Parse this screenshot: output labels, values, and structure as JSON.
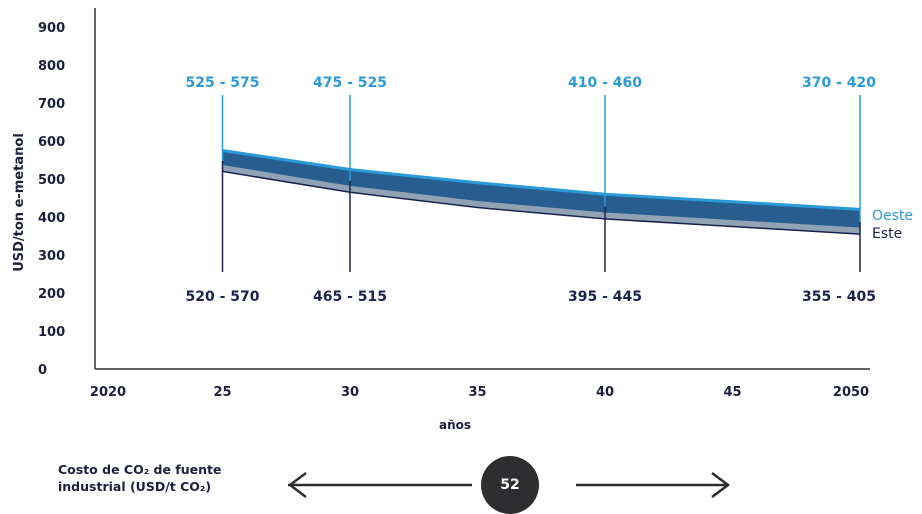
{
  "chart_data": {
    "type": "area",
    "ylabel": "USD/ton e-metanol",
    "xlabel": "años",
    "ylim": [
      0,
      900
    ],
    "yticks": [
      0,
      100,
      200,
      300,
      400,
      500,
      600,
      700,
      800,
      900
    ],
    "xlim": [
      2020,
      2050
    ],
    "xticks": [
      2020,
      2025,
      2030,
      2035,
      2040,
      2045,
      2050
    ],
    "xtick_labels": [
      "2020",
      "25",
      "30",
      "35",
      "40",
      "45",
      "2050"
    ],
    "x": [
      2025,
      2030,
      2035,
      2040,
      2045,
      2050
    ],
    "series": [
      {
        "name": "Oeste",
        "color": "#2b9ad8",
        "low": [
          525,
          475,
          440,
          410,
          390,
          370
        ],
        "high": [
          575,
          525,
          490,
          460,
          440,
          420
        ]
      },
      {
        "name": "Este",
        "color": "#1b2250",
        "low": [
          520,
          465,
          425,
          395,
          375,
          355
        ],
        "high": [
          570,
          515,
          475,
          445,
          425,
          405
        ]
      }
    ],
    "annotations": [
      {
        "x": 2025,
        "top": "525 - 575",
        "bottom": "520 - 570"
      },
      {
        "x": 2030,
        "top": "475 - 525",
        "bottom": "465 - 515"
      },
      {
        "x": 2040,
        "top": "410 - 460",
        "bottom": "395 - 445"
      },
      {
        "x": 2050,
        "top": "370 - 420",
        "bottom": "355 - 405"
      }
    ],
    "legend": [
      "Oeste",
      "Este"
    ],
    "legend_position": "right"
  },
  "footer": {
    "label_line1": "Costo de CO₂ de fuente",
    "label_line2": "industrial (USD/t CO₂)",
    "badge_value": "52"
  },
  "colors": {
    "axis": "#2e2e31",
    "text": "#1c1f3d",
    "band_fill": "#275e8f",
    "oeste": "#2b9ad8",
    "este": "#1b2250",
    "este_band": "#8fa3b5"
  }
}
